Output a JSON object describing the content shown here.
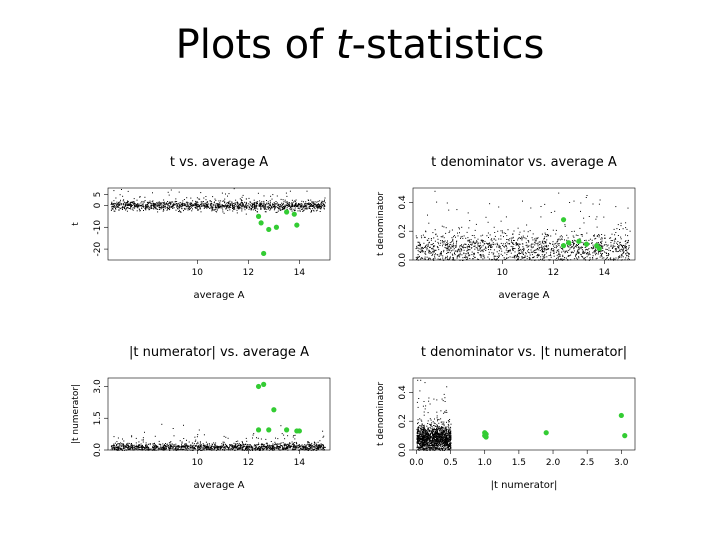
{
  "slide": {
    "title_prefix": "Plots of ",
    "title_italic": "t",
    "title_suffix": "-statistics"
  },
  "colors": {
    "background": "#ffffff",
    "points": "#000000",
    "highlight": "#33cc33",
    "axes": "#000000"
  },
  "chart_data": [
    {
      "type": "scatter",
      "title": "t vs. average A",
      "xlabel": "average A",
      "ylabel": "t",
      "xlim": [
        6.5,
        15.2
      ],
      "ylim": [
        -25,
        8
      ],
      "xticks": [
        10,
        12,
        14
      ],
      "xtick_labels": [
        "10",
        "12",
        "14"
      ],
      "yticks": [
        -20,
        -10,
        0,
        5
      ],
      "ytick_labels": [
        "-20",
        "-10",
        "0",
        "5"
      ],
      "background_cloud": {
        "x_range": [
          6.6,
          15.0
        ],
        "y_center": 0,
        "y_spread": 2.5,
        "description": "dense black band"
      },
      "series": [
        {
          "color": "#33cc33",
          "points": [
            [
              12.4,
              -5
            ],
            [
              12.5,
              -8
            ],
            [
              12.8,
              -11
            ],
            [
              13.1,
              -10
            ],
            [
              13.5,
              -3
            ],
            [
              13.8,
              -4
            ],
            [
              13.9,
              -9
            ],
            [
              12.6,
              -22
            ]
          ]
        }
      ],
      "grid": false
    },
    {
      "type": "scatter",
      "title": "t denominator vs. average A",
      "xlabel": "average A",
      "ylabel": "t denominator",
      "xlim": [
        6.5,
        15.2
      ],
      "ylim": [
        0,
        0.5
      ],
      "xticks": [
        10,
        12,
        14
      ],
      "xtick_labels": [
        "10",
        "12",
        "14"
      ],
      "yticks": [
        0.0,
        0.2,
        0.4
      ],
      "ytick_labels": [
        "0.0",
        "0.2",
        "0.4"
      ],
      "background_cloud": {
        "x_range": [
          6.6,
          15.0
        ],
        "y_center": 0.08,
        "y_spread": 0.12,
        "description": "dense black band with sparse points above"
      },
      "series": [
        {
          "color": "#33cc33",
          "points": [
            [
              12.4,
              0.28
            ],
            [
              12.4,
              0.1
            ],
            [
              12.6,
              0.12
            ],
            [
              13.0,
              0.13
            ],
            [
              13.3,
              0.11
            ],
            [
              13.7,
              0.1
            ],
            [
              13.8,
              0.08
            ]
          ]
        }
      ],
      "grid": false
    },
    {
      "type": "scatter",
      "title": "|t numerator| vs. average A",
      "xlabel": "average A",
      "ylabel": "|t numerator|",
      "xlim": [
        6.5,
        15.2
      ],
      "ylim": [
        0,
        3.4
      ],
      "xticks": [
        10,
        12,
        14
      ],
      "xtick_labels": [
        "10",
        "12",
        "14"
      ],
      "yticks": [
        0.0,
        1.5,
        3.0
      ],
      "ytick_labels": [
        "0.0",
        "1.5",
        "3.0"
      ],
      "background_cloud": {
        "x_range": [
          6.6,
          15.0
        ],
        "y_center": 0.15,
        "y_spread": 0.2,
        "description": "dense black band near zero"
      },
      "series": [
        {
          "color": "#33cc33",
          "points": [
            [
              12.4,
              3.0
            ],
            [
              12.6,
              3.1
            ],
            [
              12.4,
              0.95
            ],
            [
              12.8,
              0.95
            ],
            [
              13.0,
              1.9
            ],
            [
              13.5,
              0.95
            ],
            [
              13.9,
              0.9
            ],
            [
              14.0,
              0.9
            ]
          ]
        }
      ],
      "grid": false
    },
    {
      "type": "scatter",
      "title": "t denominator vs. |t numerator|",
      "xlabel": "|t numerator|",
      "ylabel": "t denominator",
      "xlim": [
        -0.05,
        3.2
      ],
      "ylim": [
        0,
        0.5
      ],
      "xticks": [
        0.0,
        0.5,
        1.0,
        1.5,
        2.0,
        2.5,
        3.0
      ],
      "xtick_labels": [
        "0.0",
        "0.5",
        "1.0",
        "1.5",
        "2.0",
        "2.5",
        "3.0"
      ],
      "yticks": [
        0.0,
        0.2,
        0.4
      ],
      "ytick_labels": [
        "0.0",
        "0.2",
        "0.4"
      ],
      "background_cloud": {
        "x_range": [
          0.0,
          0.5
        ],
        "y_center": 0.08,
        "y_spread": 0.1,
        "description": "dense black cluster near origin"
      },
      "series": [
        {
          "color": "#33cc33",
          "points": [
            [
              1.0,
              0.12
            ],
            [
              1.02,
              0.11
            ],
            [
              1.0,
              0.1
            ],
            [
              1.02,
              0.09
            ],
            [
              1.9,
              0.12
            ],
            [
              3.0,
              0.24
            ],
            [
              3.05,
              0.1
            ]
          ]
        }
      ],
      "grid": false
    }
  ]
}
